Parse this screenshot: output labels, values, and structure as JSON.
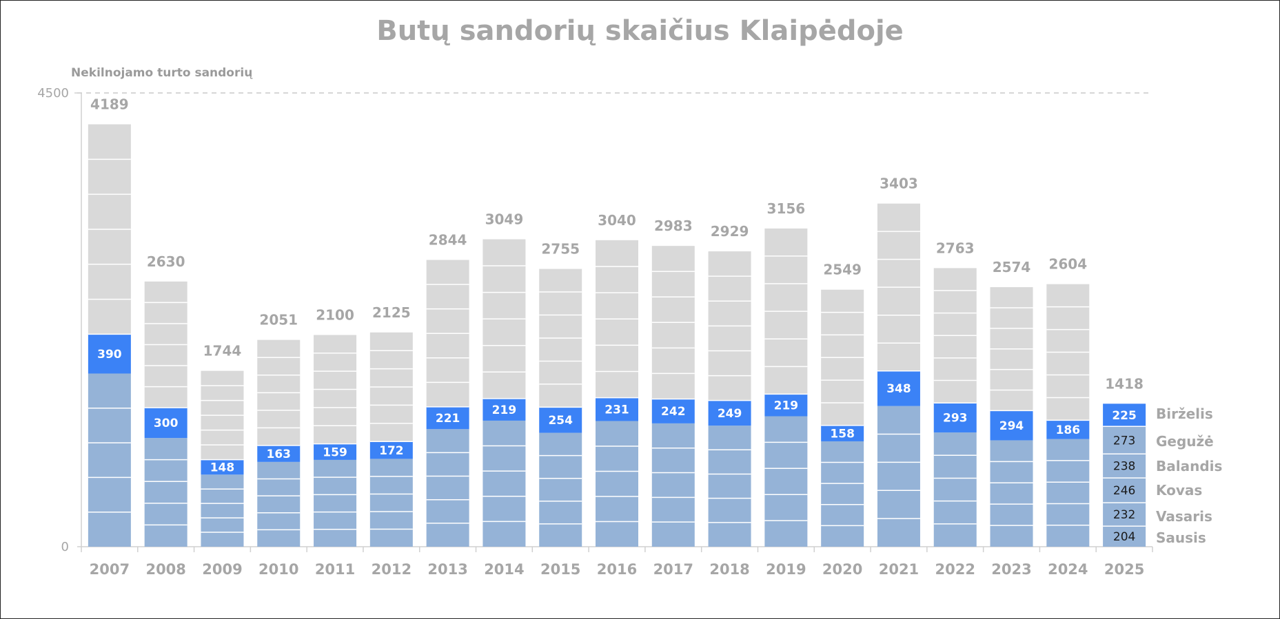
{
  "chart_data": {
    "type": "bar",
    "stacked": true,
    "title": "Butų sandorių skaičius Klaipėdoje",
    "ylabel": "Nekilnojamo turto sandorių",
    "ylim": [
      0,
      4500
    ],
    "yticks": [
      "0",
      "4500"
    ],
    "categories": [
      "2007",
      "2008",
      "2009",
      "2010",
      "2011",
      "2012",
      "2013",
      "2014",
      "2015",
      "2016",
      "2017",
      "2018",
      "2019",
      "2020",
      "2021",
      "2022",
      "2023",
      "2024",
      "2025"
    ],
    "totals": [
      4189,
      2630,
      1744,
      2051,
      2100,
      2125,
      2844,
      3049,
      2755,
      3040,
      2983,
      2929,
      3156,
      2549,
      3403,
      2763,
      2574,
      2604,
      1418
    ],
    "june_values": [
      390,
      300,
      148,
      163,
      159,
      172,
      221,
      219,
      254,
      231,
      242,
      249,
      219,
      158,
      348,
      293,
      294,
      186,
      225
    ],
    "months_2025": [
      {
        "name": "Sausis",
        "value": 204
      },
      {
        "name": "Vasaris",
        "value": 232
      },
      {
        "name": "Kovas",
        "value": 246
      },
      {
        "name": "Balandis",
        "value": 238
      },
      {
        "name": "Gegužė",
        "value": 273
      },
      {
        "name": "Birželis",
        "value": 225
      }
    ],
    "colors": {
      "before_june": "#95b3d7",
      "june": "#3b82f6",
      "after_june": "#d9d9d9",
      "divider": "#ffffff"
    }
  }
}
